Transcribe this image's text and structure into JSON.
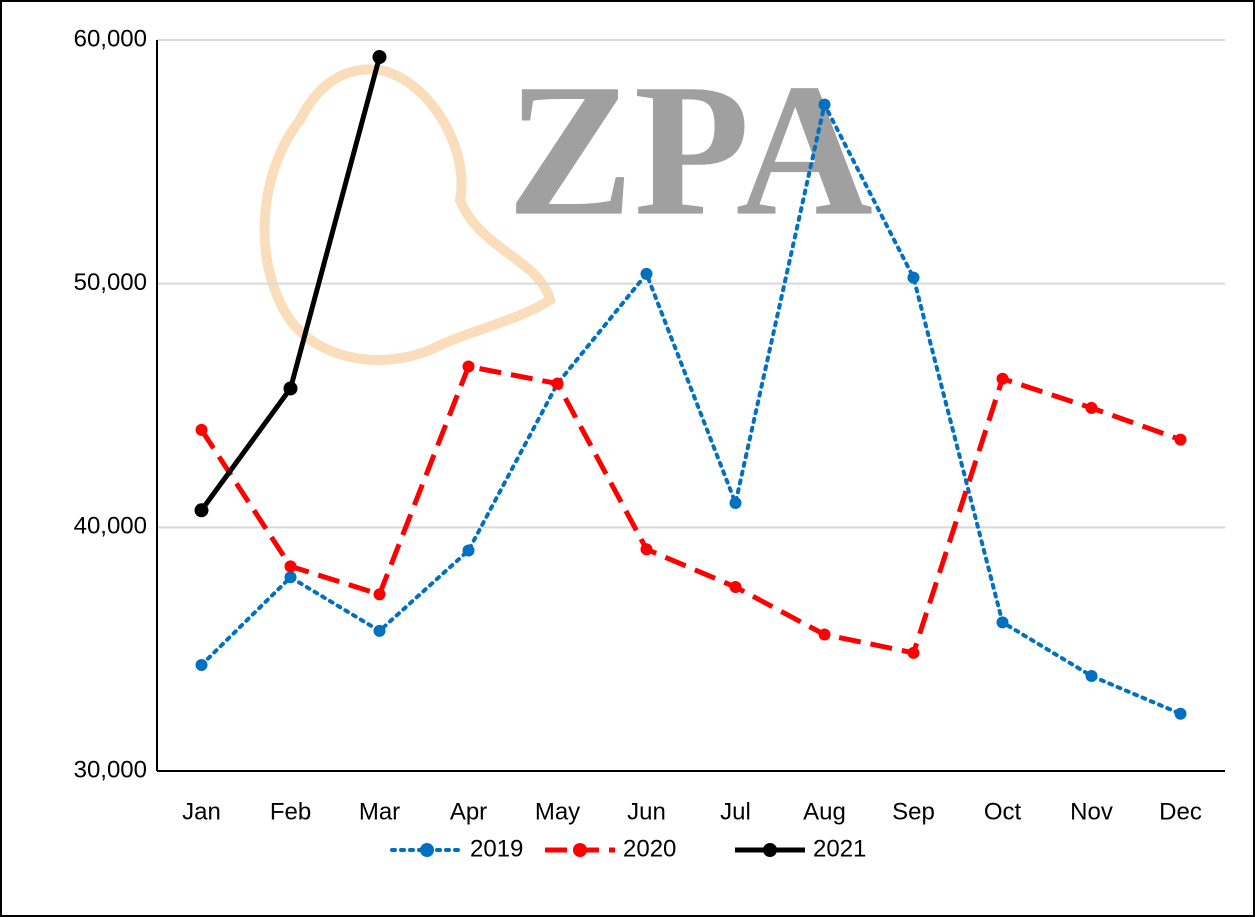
{
  "chart_data": {
    "type": "line",
    "watermark": "ZPA",
    "categories": [
      "Jan",
      "Feb",
      "Mar",
      "Apr",
      "May",
      "Jun",
      "Jul",
      "Aug",
      "Sep",
      "Oct",
      "Nov",
      "Dec"
    ],
    "series": [
      {
        "name": "2019",
        "color": "#0070c0",
        "style": "dotted",
        "values": [
          34350,
          37950,
          35750,
          39050,
          45900,
          50400,
          41000,
          57350,
          50250,
          36100,
          33900,
          32350
        ]
      },
      {
        "name": "2020",
        "color": "#ff0000",
        "style": "dashed",
        "values": [
          44000,
          38400,
          37250,
          46600,
          45900,
          39100,
          37550,
          35600,
          34850,
          46100,
          44900,
          43600
        ]
      },
      {
        "name": "2021",
        "color": "#000000",
        "style": "solid",
        "values": [
          40700,
          45700,
          59300,
          null,
          null,
          null,
          null,
          null,
          null,
          null,
          null,
          null
        ]
      }
    ],
    "ylim": [
      30000,
      60000
    ],
    "yticks": [
      {
        "value": 30000,
        "label": "30,000"
      },
      {
        "value": 40000,
        "label": "40,000"
      },
      {
        "value": 50000,
        "label": "50,000"
      },
      {
        "value": 60000,
        "label": "60,000"
      }
    ],
    "grid": true,
    "legend": "bottom"
  }
}
